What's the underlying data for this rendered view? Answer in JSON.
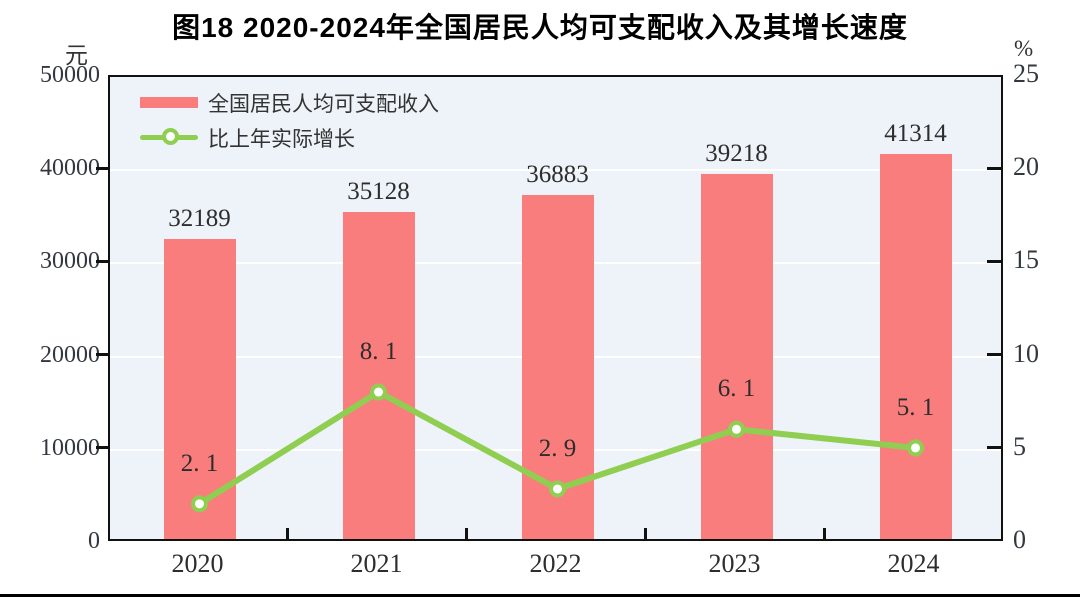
{
  "figure": {
    "title": "图18  2020-2024年全国居民人均可支配收入及其增长速度",
    "left_axis_unit": "元",
    "right_axis_unit": "%"
  },
  "legend": [
    {
      "label": "全国居民人均可支配收入",
      "swatch": "bar",
      "color": "#fa7d7d"
    },
    {
      "label": "比上年实际增长",
      "swatch": "line-marker",
      "color": "#8fce50"
    }
  ],
  "colors": {
    "bar": "#fa7d7d",
    "line": "#8fce50",
    "marker_fill": "#ffffff",
    "plot_background": "#edf3f8",
    "gridline": "#ffffff",
    "text": "#2d2d2d"
  },
  "chart_data": {
    "type": "bar",
    "subtype": "bar-line-combo",
    "title": "图18  2020-2024年全国居民人均可支配收入及其增长速度",
    "categories": [
      "2020",
      "2021",
      "2022",
      "2023",
      "2024"
    ],
    "series": [
      {
        "name": "全国居民人均可支配收入",
        "type": "bar",
        "axis": "left",
        "unit": "元",
        "color": "#fa7d7d",
        "values": [
          32189,
          35128,
          36883,
          39218,
          41314
        ],
        "labels": [
          "32189",
          "35128",
          "36883",
          "39218",
          "41314"
        ]
      },
      {
        "name": "比上年实际增长",
        "type": "line",
        "axis": "right",
        "unit": "%",
        "color": "#8fce50",
        "values": [
          2.1,
          8.1,
          2.9,
          6.1,
          5.1
        ],
        "labels": [
          "2. 1",
          "8. 1",
          "2. 9",
          "6. 1",
          "5. 1"
        ]
      }
    ],
    "left_axis": {
      "unit": "元",
      "min": 0,
      "max": 50000,
      "ticks": [
        0,
        10000,
        20000,
        30000,
        40000,
        50000
      ],
      "tick_labels": [
        "0",
        "10000",
        "20000",
        "30000",
        "40000",
        "50000"
      ]
    },
    "right_axis": {
      "unit": "%",
      "min": 0,
      "max": 25,
      "ticks": [
        0,
        5,
        10,
        15,
        20,
        25
      ],
      "tick_labels": [
        "0",
        "5",
        "10",
        "15",
        "20",
        "25"
      ]
    },
    "grid": true,
    "legend_position": "top-left"
  }
}
